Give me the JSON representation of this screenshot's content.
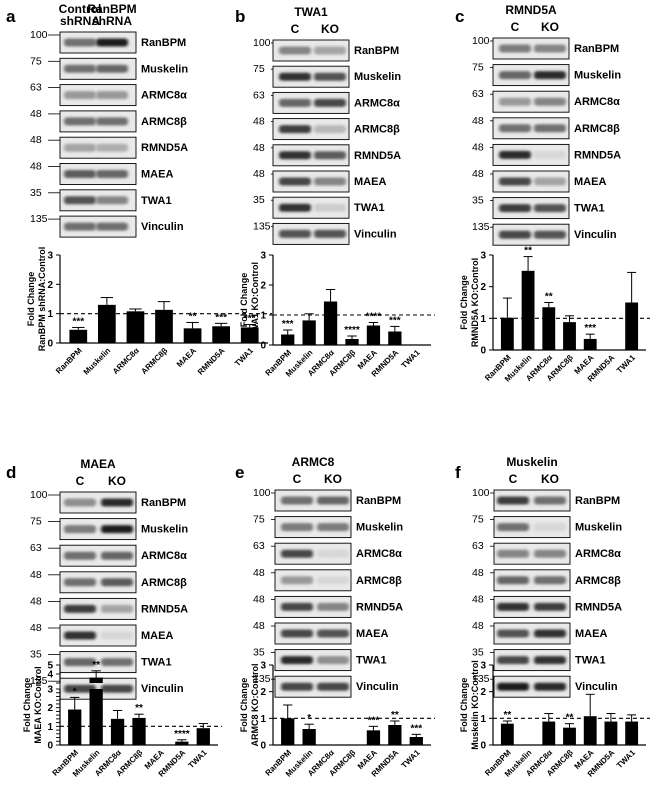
{
  "panels": [
    {
      "letter": "a",
      "header": {
        "lanes": [
          "Control\nshRNA",
          "RanBPM\nshRNA"
        ],
        "title": ""
      },
      "blots": [
        {
          "mw": "100",
          "protein": "RanBPM",
          "bands": [
            0.55,
            0.95
          ]
        },
        {
          "mw": "75",
          "protein": "Muskelin",
          "bands": [
            0.55,
            0.6
          ]
        },
        {
          "mw": "63",
          "protein": "ARMC8α",
          "bands": [
            0.35,
            0.35
          ]
        },
        {
          "mw": "48",
          "protein": "ARMC8β",
          "bands": [
            0.55,
            0.55
          ]
        },
        {
          "mw": "48",
          "protein": "RMND5A",
          "bands": [
            0.3,
            0.25
          ]
        },
        {
          "mw": "48",
          "protein": "MAEA",
          "bands": [
            0.65,
            0.6
          ]
        },
        {
          "mw": "35",
          "protein": "TWA1",
          "bands": [
            0.7,
            0.45
          ]
        },
        {
          "mw": "135",
          "protein": "Vinculin",
          "bands": [
            0.55,
            0.55
          ]
        }
      ]
    },
    {
      "letter": "b",
      "header": {
        "lanes": [
          "C",
          "KO"
        ],
        "title": "TWA1"
      },
      "blots": [
        {
          "mw": "100",
          "protein": "RanBPM",
          "bands": [
            0.45,
            0.3
          ]
        },
        {
          "mw": "75",
          "protein": "Muskelin",
          "bands": [
            0.85,
            0.7
          ]
        },
        {
          "mw": "63",
          "protein": "ARMC8α",
          "bands": [
            0.6,
            0.75
          ]
        },
        {
          "mw": "48",
          "protein": "ARMC8β",
          "bands": [
            0.8,
            0.2
          ]
        },
        {
          "mw": "48",
          "protein": "RMND5A",
          "bands": [
            0.85,
            0.65
          ]
        },
        {
          "mw": "48",
          "protein": "MAEA",
          "bands": [
            0.75,
            0.45
          ]
        },
        {
          "mw": "35",
          "protein": "TWA1",
          "bands": [
            0.85,
            0.1
          ]
        },
        {
          "mw": "135",
          "protein": "Vinculin",
          "bands": [
            0.7,
            0.7
          ]
        }
      ]
    },
    {
      "letter": "c",
      "header": {
        "lanes": [
          "C",
          "KO"
        ],
        "title": "RMND5A"
      },
      "blots": [
        {
          "mw": "100",
          "protein": "RanBPM",
          "bands": [
            0.5,
            0.45
          ]
        },
        {
          "mw": "75",
          "protein": "Muskelin",
          "bands": [
            0.6,
            0.9
          ]
        },
        {
          "mw": "63",
          "protein": "ARMC8α",
          "bands": [
            0.35,
            0.45
          ]
        },
        {
          "mw": "48",
          "protein": "ARMC8β",
          "bands": [
            0.55,
            0.55
          ]
        },
        {
          "mw": "48",
          "protein": "RMND5A",
          "bands": [
            0.9,
            0.05
          ]
        },
        {
          "mw": "48",
          "protein": "MAEA",
          "bands": [
            0.75,
            0.3
          ]
        },
        {
          "mw": "35",
          "protein": "TWA1",
          "bands": [
            0.8,
            0.7
          ]
        },
        {
          "mw": "135",
          "protein": "Vinculin",
          "bands": [
            0.75,
            0.7
          ]
        }
      ]
    },
    {
      "letter": "d",
      "header": {
        "lanes": [
          "C",
          "KO"
        ],
        "title": "MAEA"
      },
      "blots": [
        {
          "mw": "100",
          "protein": "RanBPM",
          "bands": [
            0.4,
            0.9
          ]
        },
        {
          "mw": "75",
          "protein": "Muskelin",
          "bands": [
            0.5,
            0.95
          ]
        },
        {
          "mw": "63",
          "protein": "ARMC8α",
          "bands": [
            0.55,
            0.6
          ]
        },
        {
          "mw": "48",
          "protein": "ARMC8β",
          "bands": [
            0.55,
            0.65
          ]
        },
        {
          "mw": "48",
          "protein": "RMND5A",
          "bands": [
            0.8,
            0.3
          ]
        },
        {
          "mw": "48",
          "protein": "MAEA",
          "bands": [
            0.85,
            0.05
          ]
        },
        {
          "mw": "35",
          "protein": "TWA1",
          "bands": [
            0.6,
            0.55
          ]
        },
        {
          "mw": "135",
          "protein": "Vinculin",
          "bands": [
            0.75,
            0.75
          ]
        }
      ]
    },
    {
      "letter": "e",
      "header": {
        "lanes": [
          "C",
          "KO"
        ],
        "title": "ARMC8"
      },
      "blots": [
        {
          "mw": "100",
          "protein": "RanBPM",
          "bands": [
            0.55,
            0.6
          ]
        },
        {
          "mw": "75",
          "protein": "Muskelin",
          "bands": [
            0.5,
            0.5
          ]
        },
        {
          "mw": "63",
          "protein": "ARMC8α",
          "bands": [
            0.75,
            0.05
          ]
        },
        {
          "mw": "48",
          "protein": "ARMC8β",
          "bands": [
            0.35,
            0.05
          ]
        },
        {
          "mw": "48",
          "protein": "RMND5A",
          "bands": [
            0.75,
            0.45
          ]
        },
        {
          "mw": "48",
          "protein": "MAEA",
          "bands": [
            0.75,
            0.7
          ]
        },
        {
          "mw": "35",
          "protein": "TWA1",
          "bands": [
            0.9,
            0.4
          ]
        },
        {
          "mw": "135",
          "protein": "Vinculin",
          "bands": [
            0.75,
            0.75
          ]
        }
      ]
    },
    {
      "letter": "f",
      "header": {
        "lanes": [
          "C",
          "KO"
        ],
        "title": "Muskelin"
      },
      "blots": [
        {
          "mw": "100",
          "protein": "RanBPM",
          "bands": [
            0.8,
            0.55
          ]
        },
        {
          "mw": "75",
          "protein": "Muskelin",
          "bands": [
            0.55,
            0.05
          ]
        },
        {
          "mw": "63",
          "protein": "ARMC8α",
          "bands": [
            0.45,
            0.45
          ]
        },
        {
          "mw": "48",
          "protein": "ARMC8β",
          "bands": [
            0.6,
            0.55
          ]
        },
        {
          "mw": "48",
          "protein": "RMND5A",
          "bands": [
            0.85,
            0.8
          ]
        },
        {
          "mw": "48",
          "protein": "MAEA",
          "bands": [
            0.7,
            0.85
          ]
        },
        {
          "mw": "35",
          "protein": "TWA1",
          "bands": [
            0.75,
            0.85
          ]
        },
        {
          "mw": "135",
          "protein": "Vinculin",
          "bands": [
            0.95,
            0.9
          ]
        }
      ]
    }
  ],
  "chart_data": [
    {
      "panel": "a",
      "type": "bar",
      "ylabel": [
        "Fold Change",
        "RanBPM shRNA:Control"
      ],
      "ylim": [
        0,
        3
      ],
      "yticks": [
        0,
        1,
        2,
        3
      ],
      "reference_line": 1,
      "categories": [
        "RanBPM",
        "Muskelin",
        "ARMC8α",
        "ARMC8β",
        "MAEA",
        "RMND5A",
        "TWA1"
      ],
      "values": [
        0.45,
        1.3,
        1.08,
        1.13,
        0.5,
        0.57,
        0.53
      ],
      "errors": [
        0.08,
        0.25,
        0.08,
        0.28,
        0.2,
        0.1,
        0.1
      ],
      "significance": [
        "***",
        "",
        "",
        "",
        "**",
        "***",
        "***"
      ]
    },
    {
      "panel": "b",
      "type": "bar",
      "ylabel": [
        "Fold Change",
        "TWA1 KO:Control"
      ],
      "ylim": [
        0,
        3
      ],
      "yticks": [
        0,
        1,
        2,
        3
      ],
      "reference_line": 1,
      "categories": [
        "RanBPM",
        "Muskelin",
        "ARMC8α",
        "ARMC8β",
        "MAEA",
        "RMND5A",
        "TWA1"
      ],
      "values": [
        0.35,
        0.82,
        1.45,
        0.2,
        0.65,
        0.45,
        0
      ],
      "errors": [
        0.15,
        0.22,
        0.4,
        0.1,
        0.1,
        0.17,
        0
      ],
      "significance": [
        "***",
        "",
        "",
        "****",
        "****",
        "***",
        ""
      ]
    },
    {
      "panel": "c",
      "type": "bar",
      "ylabel": [
        "Fold Change",
        "RMND5A KO:Control"
      ],
      "ylim": [
        0,
        3
      ],
      "yticks": [
        0,
        1,
        2,
        3
      ],
      "reference_line": 1,
      "categories": [
        "RanBPM",
        "Muskelin",
        "ARMC8α",
        "ARMC8β",
        "MAEA",
        "RMND5A",
        "TWA1"
      ],
      "values": [
        1.02,
        2.5,
        1.35,
        0.88,
        0.35,
        0,
        1.5
      ],
      "errors": [
        0.62,
        0.45,
        0.15,
        0.2,
        0.15,
        0,
        0.95
      ],
      "significance": [
        "",
        "**",
        "**",
        "",
        "***",
        "",
        ""
      ]
    },
    {
      "panel": "d",
      "type": "bar",
      "ylabel": [
        "Fold Change",
        "MAEA KO:Control"
      ],
      "axis_break": true,
      "ylim_lower": [
        0,
        3
      ],
      "yticks_lower": [
        0,
        0.2,
        0.4,
        0.6,
        0.8,
        1.0,
        1.2,
        1.4,
        1.6,
        1.8,
        2.0,
        2.2,
        2.4,
        2.6,
        2.8,
        3.0
      ],
      "ylim_upper": [
        3,
        5
      ],
      "yticks_upper": [
        3,
        4,
        5
      ],
      "reference_line": 1,
      "categories": [
        "RanBPM",
        "Muskelin",
        "ARMC8α",
        "ARMC8β",
        "MAEA",
        "RMND5A",
        "TWA1"
      ],
      "values": [
        1.9,
        3.6,
        1.4,
        1.45,
        0,
        0.18,
        0.9
      ],
      "errors": [
        0.65,
        0.75,
        0.45,
        0.2,
        0,
        0.1,
        0.25
      ],
      "significance": [
        "*",
        "**",
        "",
        "**",
        "",
        "****",
        ""
      ]
    },
    {
      "panel": "e",
      "type": "bar",
      "ylabel": [
        "Fold Change",
        "ARMC8 KO:Control"
      ],
      "ylim": [
        0,
        3
      ],
      "yticks": [
        0,
        1,
        2,
        3
      ],
      "reference_line": 1,
      "categories": [
        "RanBPM",
        "Muskelin",
        "ARMC8α",
        "ARMC8β",
        "MAEA",
        "RMND5A",
        "TWA1"
      ],
      "values": [
        1.0,
        0.6,
        0,
        0,
        0.55,
        0.75,
        0.3
      ],
      "errors": [
        0.5,
        0.18,
        0,
        0,
        0.15,
        0.15,
        0.1
      ],
      "significance": [
        "",
        "*",
        "",
        "",
        "***",
        "**",
        "***"
      ]
    },
    {
      "panel": "f",
      "type": "bar",
      "ylabel": [
        "Fold Change",
        "Muskelin KO:Control"
      ],
      "ylim": [
        0,
        3
      ],
      "yticks": [
        0,
        1,
        2,
        3
      ],
      "reference_line": 1,
      "categories": [
        "RanBPM",
        "Muskelin",
        "ARMC8α",
        "ARMC8β",
        "MAEA",
        "RMND5A",
        "TWA1"
      ],
      "values": [
        0.8,
        0,
        0.88,
        0.65,
        1.08,
        0.88,
        0.88
      ],
      "errors": [
        0.1,
        0,
        0.3,
        0.15,
        0.82,
        0.3,
        0.25
      ],
      "significance": [
        "**",
        "",
        "",
        "**",
        "",
        "",
        ""
      ]
    }
  ]
}
